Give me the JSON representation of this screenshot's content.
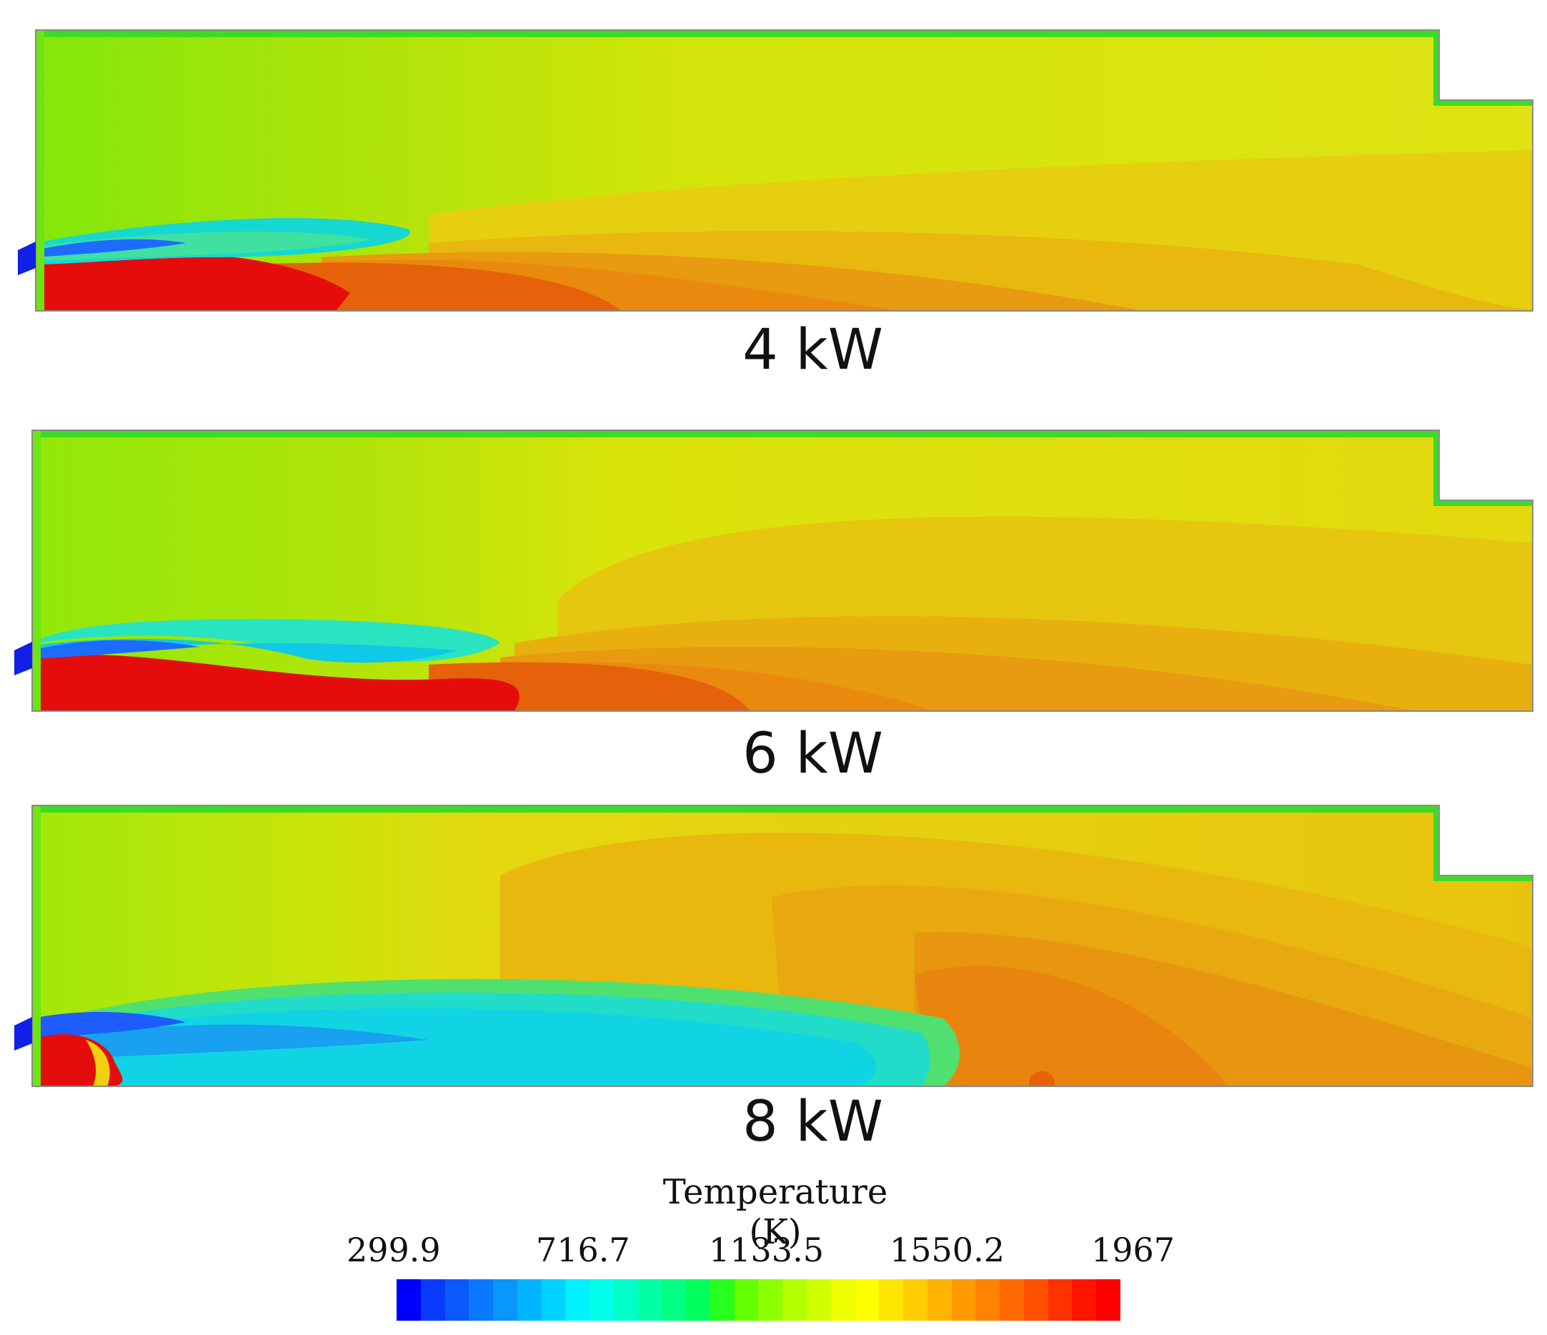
{
  "panels": [
    {
      "label": "4 kW"
    },
    {
      "label": "6 kW"
    },
    {
      "label": "8 kW"
    }
  ],
  "colorbar": {
    "title": "Temperature (K)",
    "ticks": [
      "299.9",
      "716.7",
      "1133.5",
      "1550.2",
      "1967"
    ],
    "colors": [
      "#0000ff",
      "#0a3cff",
      "#0a5aff",
      "#0a78ff",
      "#0a96ff",
      "#00b4ff",
      "#00d2ff",
      "#00f0ff",
      "#00ffea",
      "#00ffc8",
      "#00ffa5",
      "#00ff82",
      "#00ff5a",
      "#28ff1e",
      "#64ff00",
      "#8cff00",
      "#b4ff00",
      "#d2ff00",
      "#f0ff00",
      "#ffff00",
      "#ffe600",
      "#ffcd00",
      "#ffb400",
      "#ff9b00",
      "#ff8200",
      "#ff6900",
      "#ff5000",
      "#ff3200",
      "#ff1400",
      "#ff0000"
    ]
  }
}
